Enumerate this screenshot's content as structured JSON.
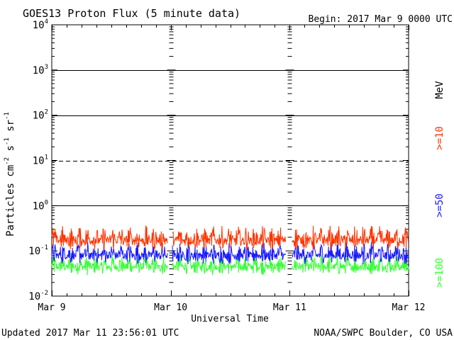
{
  "chart_data": {
    "type": "line",
    "title": "GOES13 Proton Flux (5 minute data)",
    "begin_label": "Begin: 2017 Mar 9 0000 UTC",
    "xlabel": "Universal Time",
    "ylabel_parts": [
      "Particles cm",
      "-2",
      "s",
      "-1",
      "sr",
      "-1"
    ],
    "x_ticks": [
      "Mar 9",
      "Mar 10",
      "Mar 11",
      "Mar 12"
    ],
    "x_range_days": [
      0,
      3
    ],
    "y_scale": "log",
    "ylim": [
      0.01,
      10000
    ],
    "y_ticks": [
      {
        "base": "10",
        "exp": "4",
        "value": 10000
      },
      {
        "base": "10",
        "exp": "3",
        "value": 1000
      },
      {
        "base": "10",
        "exp": "2",
        "value": 100
      },
      {
        "base": "10",
        "exp": "1",
        "value": 10
      },
      {
        "base": "10",
        "exp": "0",
        "value": 1
      },
      {
        "base": "10",
        "exp": "-1",
        "value": 0.1
      },
      {
        "base": "10",
        "exp": "-2",
        "value": 0.01
      }
    ],
    "threshold_lines": [
      {
        "value": 1000,
        "style": "solid"
      },
      {
        "value": 100,
        "style": "solid"
      },
      {
        "value": 10,
        "style": "dashed"
      },
      {
        "value": 1,
        "style": "solid"
      }
    ],
    "data_gaps_days": [
      [
        0.975,
        1.012
      ],
      [
        1.968,
        2.018
      ]
    ],
    "series": [
      {
        "name": ">=10",
        "color": "#ff3300",
        "base": 0.16,
        "spread": 0.35,
        "x": [
          0,
          0.5,
          1.0,
          1.5,
          2.0,
          2.5,
          3.0
        ],
        "values": [
          0.16,
          0.17,
          0.16,
          0.17,
          0.16,
          0.16,
          0.17
        ]
      },
      {
        "name": ">=50",
        "color": "#1a1aff",
        "base": 0.075,
        "spread": 0.32,
        "x": [
          0,
          0.5,
          1.0,
          1.5,
          2.0,
          2.5,
          3.0
        ],
        "values": [
          0.075,
          0.08,
          0.075,
          0.078,
          0.075,
          0.078,
          0.075
        ]
      },
      {
        "name": ">=100",
        "color": "#33ff33",
        "base": 0.042,
        "spread": 0.3,
        "x": [
          0,
          0.5,
          1.0,
          1.5,
          2.0,
          2.5,
          3.0
        ],
        "values": [
          0.042,
          0.045,
          0.042,
          0.043,
          0.042,
          0.043,
          0.042
        ]
      }
    ],
    "legend_unit": "MeV",
    "legend_placement": "right"
  },
  "footer": {
    "updated": "Updated 2017 Mar 11 23:56:01 UTC",
    "source": "NOAA/SWPC Boulder, CO USA"
  }
}
